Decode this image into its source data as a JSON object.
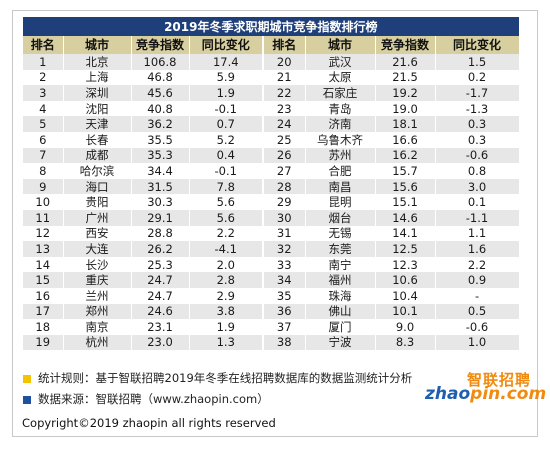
{
  "table": {
    "title": "2019年冬季求职期城市竞争指数排行榜",
    "headers": [
      "排名",
      "城市",
      "竞争指数",
      "同比变化",
      "排名",
      "城市",
      "竞争指数",
      "同比变化"
    ],
    "rows": [
      [
        "1",
        "北京",
        "106.8",
        "17.4",
        "20",
        "武汉",
        "21.6",
        "1.5"
      ],
      [
        "2",
        "上海",
        "46.8",
        "5.9",
        "21",
        "太原",
        "21.5",
        "0.2"
      ],
      [
        "3",
        "深圳",
        "45.6",
        "1.9",
        "22",
        "石家庄",
        "19.2",
        "-1.7"
      ],
      [
        "4",
        "沈阳",
        "40.8",
        "-0.1",
        "23",
        "青岛",
        "19.0",
        "-1.3"
      ],
      [
        "5",
        "天津",
        "36.2",
        "0.7",
        "24",
        "济南",
        "18.1",
        "0.3"
      ],
      [
        "6",
        "长春",
        "35.5",
        "5.2",
        "25",
        "乌鲁木齐",
        "16.6",
        "0.3"
      ],
      [
        "7",
        "成都",
        "35.3",
        "0.4",
        "26",
        "苏州",
        "16.2",
        "-0.6"
      ],
      [
        "8",
        "哈尔滨",
        "34.4",
        "-0.1",
        "27",
        "合肥",
        "15.7",
        "0.8"
      ],
      [
        "9",
        "海口",
        "31.5",
        "7.8",
        "28",
        "南昌",
        "15.6",
        "3.0"
      ],
      [
        "10",
        "贵阳",
        "30.3",
        "5.6",
        "29",
        "昆明",
        "15.1",
        "0.1"
      ],
      [
        "11",
        "广州",
        "29.1",
        "5.6",
        "30",
        "烟台",
        "14.6",
        "-1.1"
      ],
      [
        "12",
        "西安",
        "28.8",
        "2.2",
        "31",
        "无锡",
        "14.1",
        "1.1"
      ],
      [
        "13",
        "大连",
        "26.2",
        "-4.1",
        "32",
        "东莞",
        "12.5",
        "1.6"
      ],
      [
        "14",
        "长沙",
        "25.3",
        "2.0",
        "33",
        "南宁",
        "12.3",
        "2.2"
      ],
      [
        "15",
        "重庆",
        "24.7",
        "2.8",
        "34",
        "福州",
        "10.6",
        "0.9"
      ],
      [
        "16",
        "兰州",
        "24.7",
        "2.9",
        "35",
        "珠海",
        "10.4",
        "-"
      ],
      [
        "17",
        "郑州",
        "24.6",
        "3.8",
        "36",
        "佛山",
        "10.1",
        "0.5"
      ],
      [
        "18",
        "南京",
        "23.1",
        "1.9",
        "37",
        "厦门",
        "9.0",
        "-0.6"
      ],
      [
        "19",
        "杭州",
        "23.0",
        "1.3",
        "38",
        "宁波",
        "8.3",
        "1.0"
      ]
    ]
  },
  "notes": {
    "rule": "统计规则：基于智联招聘2019年冬季在线招聘数据库的数据监测统计分析",
    "source": "数据来源：智联招聘（www.zhaopin.com）",
    "rule_marker_color": "#f5c400",
    "source_marker_color": "#1f4f9f"
  },
  "logo": {
    "cn_text": "智联招聘",
    "en_part1": "zhao",
    "en_part2": "pin.com"
  },
  "copyright": "Copyright©2019 zhaopin all rights reserved",
  "colors": {
    "title_bg": "#1f3f7a",
    "header_bg": "#d7cf9f",
    "stripe": "#e7e7e7"
  }
}
